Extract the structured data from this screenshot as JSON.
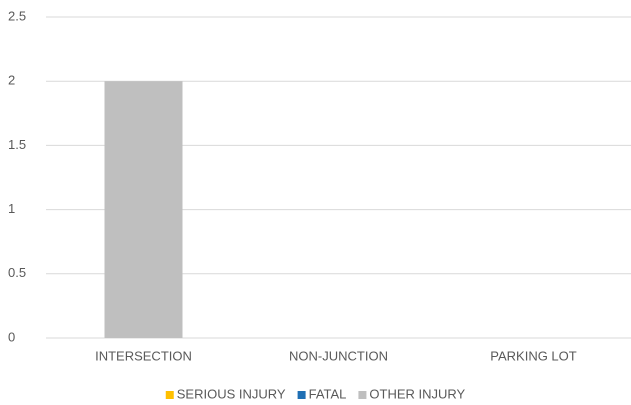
{
  "chart_data": {
    "type": "stacked_bar",
    "categories": [
      "INTERSECTION",
      "NON-JUNCTION",
      "PARKING LOT"
    ],
    "series": [
      {
        "name": "SERIOUS INJURY",
        "color": "#FFC000",
        "values": [
          0,
          0,
          0
        ]
      },
      {
        "name": "FATAL",
        "color": "#1F6FB4",
        "values": [
          0,
          0,
          0
        ]
      },
      {
        "name": "OTHER INJURY",
        "color": "#BFBFBF",
        "values": [
          2,
          0,
          0
        ]
      }
    ],
    "ylim": [
      0,
      2.5
    ],
    "yticks": [
      0,
      0.5,
      1,
      1.5,
      2,
      2.5
    ],
    "grid": true,
    "legend": "bottom"
  }
}
